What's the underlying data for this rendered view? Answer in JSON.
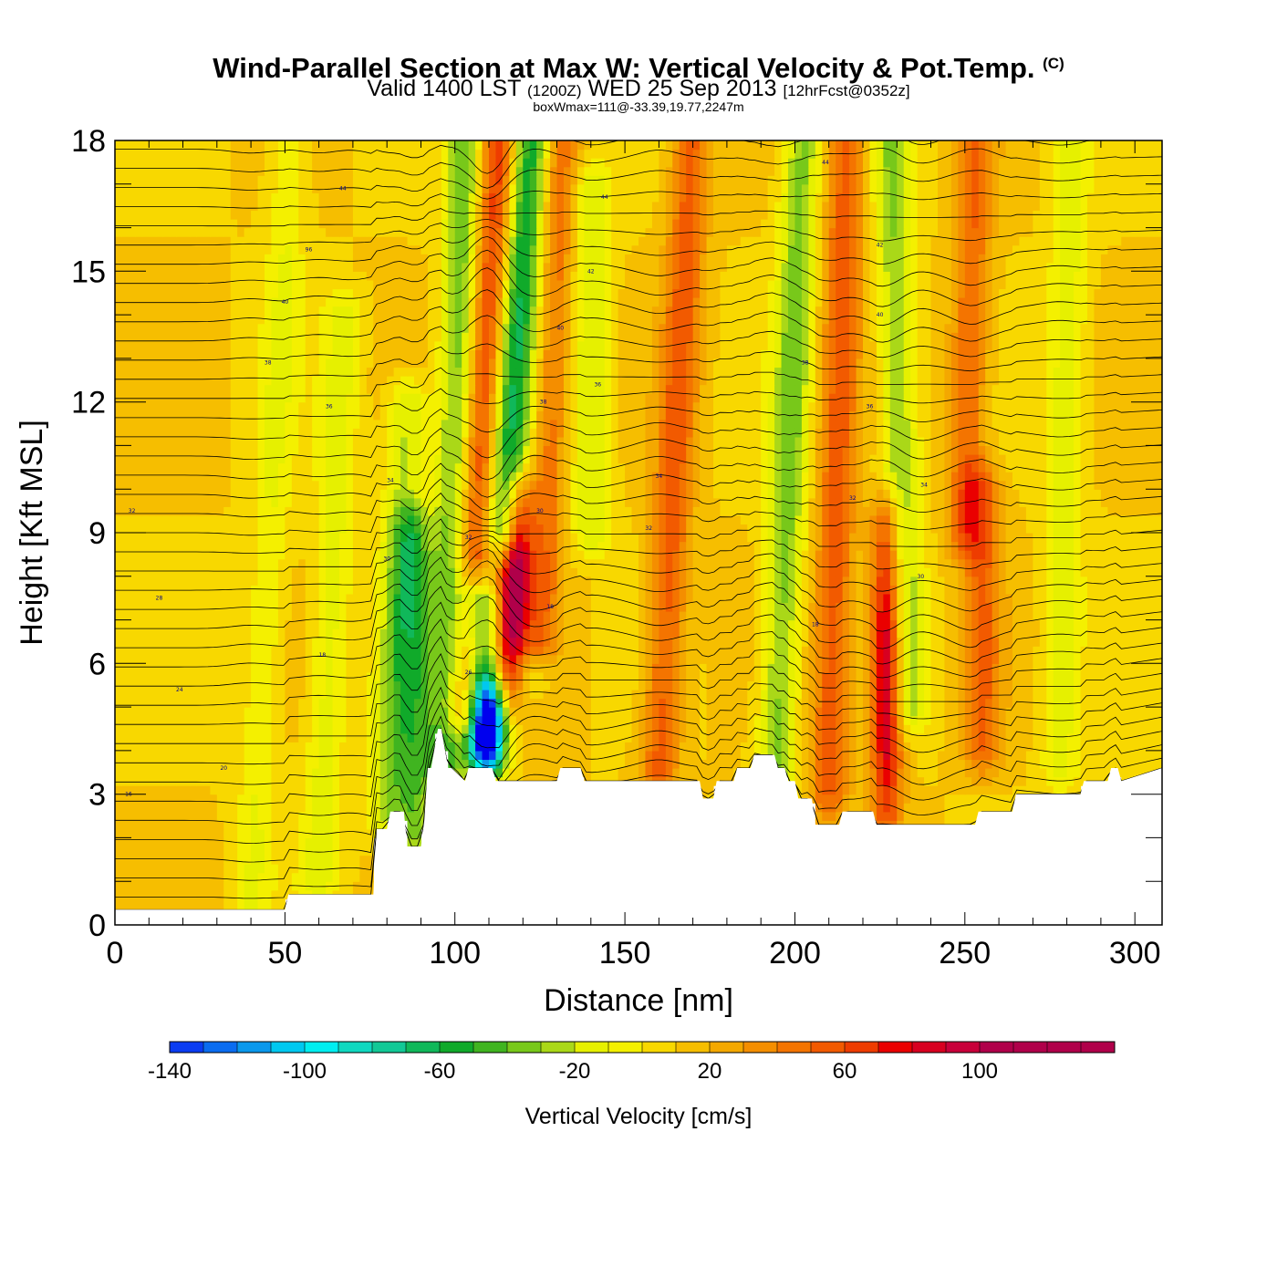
{
  "title": {
    "main": "Wind-Parallel Section at Max W: Vertical Velocity & Pot.Temp.",
    "copyright": "(C)",
    "valid_a": "Valid 1400 LST",
    "valid_utc": "(1200Z)",
    "valid_b": "WED 25 Sep 2013",
    "forecast": "[12hrFcst@0352z]",
    "box_info": "boxWmax=111@-33.39,19.77,2247m"
  },
  "chart_data": {
    "type": "heatmap",
    "title": "Wind-Parallel Section at Max W: Vertical Velocity & Pot.Temp.",
    "xlabel": "Distance [nm]",
    "ylabel": "Height [Kft MSL]",
    "xlim": [
      0,
      308
    ],
    "ylim": [
      0,
      18
    ],
    "x_ticks": [
      0,
      50,
      100,
      150,
      200,
      250,
      300
    ],
    "y_ticks": [
      0,
      3,
      6,
      9,
      12,
      15,
      18
    ],
    "colorbar": {
      "label": "Vertical Velocity [cm/s]",
      "ticks": [
        -140,
        -100,
        -60,
        -20,
        20,
        60,
        100
      ],
      "min": -140,
      "max": 140,
      "step": 10,
      "colors": [
        "#0000ee",
        "#0a3cf2",
        "#0a6cf0",
        "#0a98ec",
        "#00c8f0",
        "#00eef0",
        "#10d8c0",
        "#12c896",
        "#10b85a",
        "#10aa2a",
        "#40b420",
        "#78c81a",
        "#aad818",
        "#e6f000",
        "#f4f000",
        "#f8d800",
        "#f6be00",
        "#f4a800",
        "#f48e00",
        "#f47400",
        "#f25a00",
        "#ee3c00",
        "#ea0000",
        "#d80020",
        "#c8003a",
        "#b0004a"
      ]
    },
    "terrain": {
      "x": [
        0,
        50,
        51,
        76,
        77,
        80,
        81,
        85,
        86,
        90,
        91,
        92,
        93,
        95,
        96,
        98,
        99,
        103,
        104,
        111,
        112,
        117,
        118,
        130,
        131,
        137,
        138,
        172,
        173,
        176,
        177,
        182,
        183,
        187,
        188,
        194,
        195,
        197,
        198,
        200,
        201,
        205,
        206,
        213,
        214,
        223,
        224,
        253,
        254,
        264,
        265,
        284,
        285,
        292,
        293,
        295,
        296,
        308
      ],
      "height_kft": [
        0.35,
        0.35,
        0.7,
        0.7,
        2.2,
        2.2,
        2.6,
        2.6,
        1.8,
        1.8,
        2.4,
        3.6,
        3.6,
        4.5,
        4.5,
        3.6,
        3.6,
        3.3,
        3.6,
        3.6,
        3.3,
        3.3,
        3.3,
        3.3,
        3.6,
        3.6,
        3.3,
        3.3,
        2.9,
        2.9,
        3.3,
        3.3,
        3.6,
        3.6,
        3.9,
        3.9,
        3.6,
        3.6,
        3.3,
        3.3,
        2.9,
        2.9,
        2.3,
        2.3,
        2.6,
        2.6,
        2.3,
        2.3,
        2.6,
        2.6,
        3.0,
        3.0,
        3.3,
        3.3,
        3.6,
        3.6,
        3.3,
        3.6
      ]
    },
    "w_features": [
      {
        "x": 97,
        "h_base": 3.6,
        "h_top": 18,
        "w_cms": -50,
        "lean": 0.2
      },
      {
        "x": 103,
        "h_base": 5.0,
        "h_top": 18,
        "w_cms": 60,
        "lean": 0.35
      },
      {
        "x": 110,
        "h_base": 3.6,
        "h_top": 5.5,
        "w_cms": -135,
        "lean": 0.0
      },
      {
        "x": 108,
        "h_base": 4.0,
        "h_top": 7.5,
        "w_cms": -80,
        "lean": -0.1
      },
      {
        "x": 116,
        "h_base": 5.5,
        "h_top": 10.0,
        "w_cms": 111,
        "lean": 0.3
      },
      {
        "x": 114,
        "h_base": 9.0,
        "h_top": 18,
        "w_cms": -70,
        "lean": 0.4
      },
      {
        "x": 124,
        "h_base": 6.5,
        "h_top": 18,
        "w_cms": 70,
        "lean": 0.25
      },
      {
        "x": 122,
        "h_base": 6.0,
        "h_top": 18,
        "w_cms": -40,
        "lean": 0.25
      },
      {
        "x": 140,
        "h_base": 9.0,
        "h_top": 17,
        "w_cms": -30,
        "lean": 0.0
      },
      {
        "x": 160,
        "h_base": 3.5,
        "h_top": 18,
        "w_cms": 45,
        "lean": 0.3
      },
      {
        "x": 194,
        "h_base": 3.0,
        "h_top": 18,
        "w_cms": -45,
        "lean": 0.25
      },
      {
        "x": 210,
        "h_base": 3.0,
        "h_top": 18,
        "w_cms": 45,
        "lean": 0.15
      },
      {
        "x": 227,
        "h_base": 2.5,
        "h_top": 9.5,
        "w_cms": 95,
        "lean": 0.0
      },
      {
        "x": 233,
        "h_base": 5.0,
        "h_top": 18,
        "w_cms": -40,
        "lean": -0.15
      },
      {
        "x": 255,
        "h_base": 4.0,
        "h_top": 10,
        "w_cms": 40,
        "lean": 0.0
      },
      {
        "x": 250,
        "h_base": 9.0,
        "h_top": 18,
        "w_cms": 40,
        "lean": 0.15
      },
      {
        "x": 40,
        "h_base": 0.3,
        "h_top": 18,
        "w_cms": -20,
        "lean": 0.3
      },
      {
        "x": 60,
        "h_base": 1.0,
        "h_top": 14,
        "w_cms": -25,
        "lean": 0.25
      },
      {
        "x": 80,
        "h_base": 2.5,
        "h_top": 12,
        "w_cms": -35,
        "lean": 0.3
      },
      {
        "x": 88,
        "h_base": 2.0,
        "h_top": 9,
        "w_cms": -45,
        "lean": 0.0
      },
      {
        "x": 278,
        "h_base": 3.6,
        "h_top": 18,
        "w_cms": -25,
        "lean": 0.1
      }
    ],
    "isentropes_kelvin_offset": [
      284,
      286,
      288,
      290,
      292,
      294,
      296,
      298,
      300,
      302,
      304,
      306,
      308,
      310,
      312,
      314,
      316,
      318,
      320,
      322,
      324,
      326,
      328,
      330,
      332,
      334,
      336,
      338,
      340,
      342,
      344,
      346,
      348,
      350,
      352,
      354,
      356,
      358,
      360,
      362,
      364
    ],
    "contour_labels": [
      {
        "x": 5,
        "h": 9.5,
        "text": "32"
      },
      {
        "x": 13,
        "h": 7.5,
        "text": "28"
      },
      {
        "x": 19,
        "h": 5.4,
        "text": "24"
      },
      {
        "x": 32,
        "h": 3.6,
        "text": "20"
      },
      {
        "x": 4,
        "h": 3.0,
        "text": "16"
      },
      {
        "x": 61,
        "h": 6.2,
        "text": "18"
      },
      {
        "x": 45,
        "h": 12.9,
        "text": "38"
      },
      {
        "x": 50,
        "h": 14.3,
        "text": "40"
      },
      {
        "x": 57,
        "h": 15.5,
        "text": "96"
      },
      {
        "x": 67,
        "h": 16.9,
        "text": "44"
      },
      {
        "x": 63,
        "h": 11.9,
        "text": "36"
      },
      {
        "x": 81,
        "h": 10.2,
        "text": "34"
      },
      {
        "x": 80,
        "h": 8.4,
        "text": "30"
      },
      {
        "x": 104,
        "h": 8.9,
        "text": "32"
      },
      {
        "x": 104,
        "h": 5.8,
        "text": "26"
      },
      {
        "x": 126,
        "h": 12.0,
        "text": "38"
      },
      {
        "x": 125,
        "h": 9.5,
        "text": "30"
      },
      {
        "x": 128,
        "h": 7.3,
        "text": "18"
      },
      {
        "x": 131,
        "h": 13.7,
        "text": "40"
      },
      {
        "x": 140,
        "h": 15.0,
        "text": "42"
      },
      {
        "x": 144,
        "h": 16.7,
        "text": "44"
      },
      {
        "x": 142,
        "h": 12.4,
        "text": "36"
      },
      {
        "x": 160,
        "h": 10.3,
        "text": "34"
      },
      {
        "x": 157,
        "h": 9.1,
        "text": "32"
      },
      {
        "x": 206,
        "h": 6.9,
        "text": "18"
      },
      {
        "x": 203,
        "h": 12.9,
        "text": "38"
      },
      {
        "x": 209,
        "h": 17.5,
        "text": "44"
      },
      {
        "x": 225,
        "h": 15.6,
        "text": "42"
      },
      {
        "x": 225,
        "h": 14.0,
        "text": "40"
      },
      {
        "x": 222,
        "h": 11.9,
        "text": "36"
      },
      {
        "x": 217,
        "h": 9.8,
        "text": "32"
      },
      {
        "x": 238,
        "h": 10.1,
        "text": "34"
      },
      {
        "x": 237,
        "h": 8.0,
        "text": "30"
      }
    ]
  }
}
